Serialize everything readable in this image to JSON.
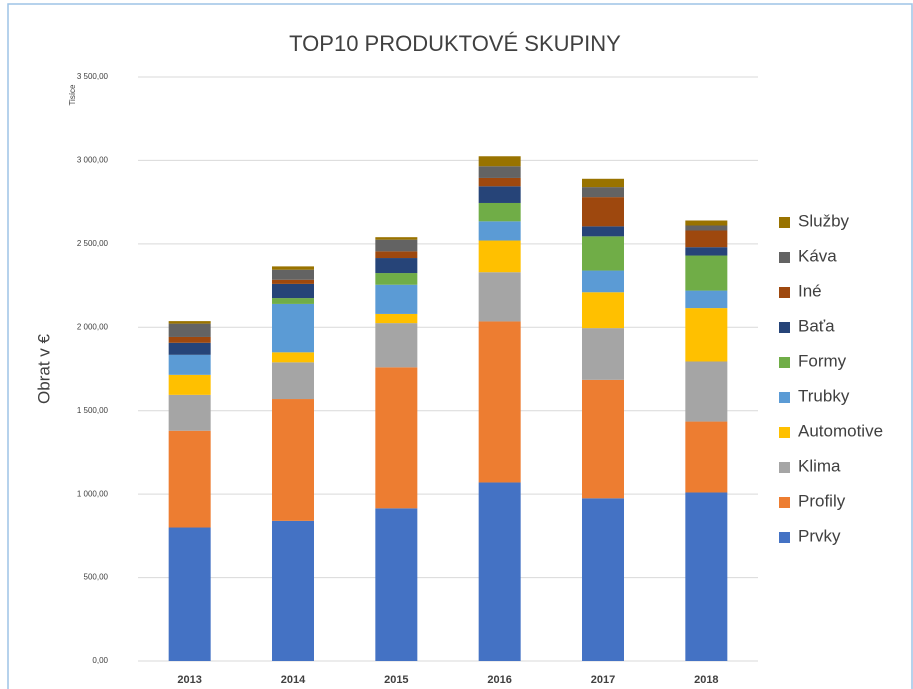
{
  "chart_data": {
    "type": "stacked_bar",
    "title": "TOP10 PRODUKTOVÉ SKUPINY",
    "y_label": "Obrat v €",
    "y_unit_label": "Tisíce",
    "categories": [
      "2013",
      "2014",
      "2015",
      "2016",
      "2017",
      "2018"
    ],
    "series": [
      {
        "name": "Prvky",
        "color": "#4472c4",
        "values": [
          800,
          840,
          915,
          1070,
          975,
          1010
        ]
      },
      {
        "name": "Profily",
        "color": "#ed7d31",
        "values": [
          580,
          730,
          845,
          965,
          710,
          425
        ]
      },
      {
        "name": "Klima",
        "color": "#a5a5a5",
        "values": [
          215,
          220,
          265,
          295,
          310,
          360
        ]
      },
      {
        "name": "Automotive",
        "color": "#ffc000",
        "values": [
          120,
          60,
          55,
          190,
          215,
          320
        ]
      },
      {
        "name": "Trubky",
        "color": "#5b9bd5",
        "values": [
          120,
          290,
          175,
          115,
          130,
          105
        ]
      },
      {
        "name": "Formy",
        "color": "#70ad47",
        "values": [
          0,
          35,
          70,
          110,
          205,
          210
        ]
      },
      {
        "name": "Baťa",
        "color": "#264478",
        "values": [
          72,
          85,
          90,
          100,
          60,
          50
        ]
      },
      {
        "name": "Iné",
        "color": "#9e480e",
        "values": [
          35,
          25,
          40,
          50,
          175,
          100
        ]
      },
      {
        "name": "Káva",
        "color": "#636363",
        "values": [
          80,
          60,
          70,
          70,
          60,
          30
        ]
      },
      {
        "name": "Služby",
        "color": "#997300",
        "values": [
          15,
          20,
          15,
          60,
          50,
          30
        ]
      }
    ],
    "ylim": [
      0,
      3500
    ],
    "yticks": [
      {
        "value": 0,
        "label": "0,00"
      },
      {
        "value": 500,
        "label": "500,00"
      },
      {
        "value": 1000,
        "label": "1 000,00"
      },
      {
        "value": 1500,
        "label": "1 500,00"
      },
      {
        "value": 2000,
        "label": "2 000,00"
      },
      {
        "value": 2500,
        "label": "2 500,00"
      },
      {
        "value": 3000,
        "label": "3 000,00"
      },
      {
        "value": 3500,
        "label": "3 500,00"
      }
    ],
    "grid": true,
    "legend": "right"
  }
}
